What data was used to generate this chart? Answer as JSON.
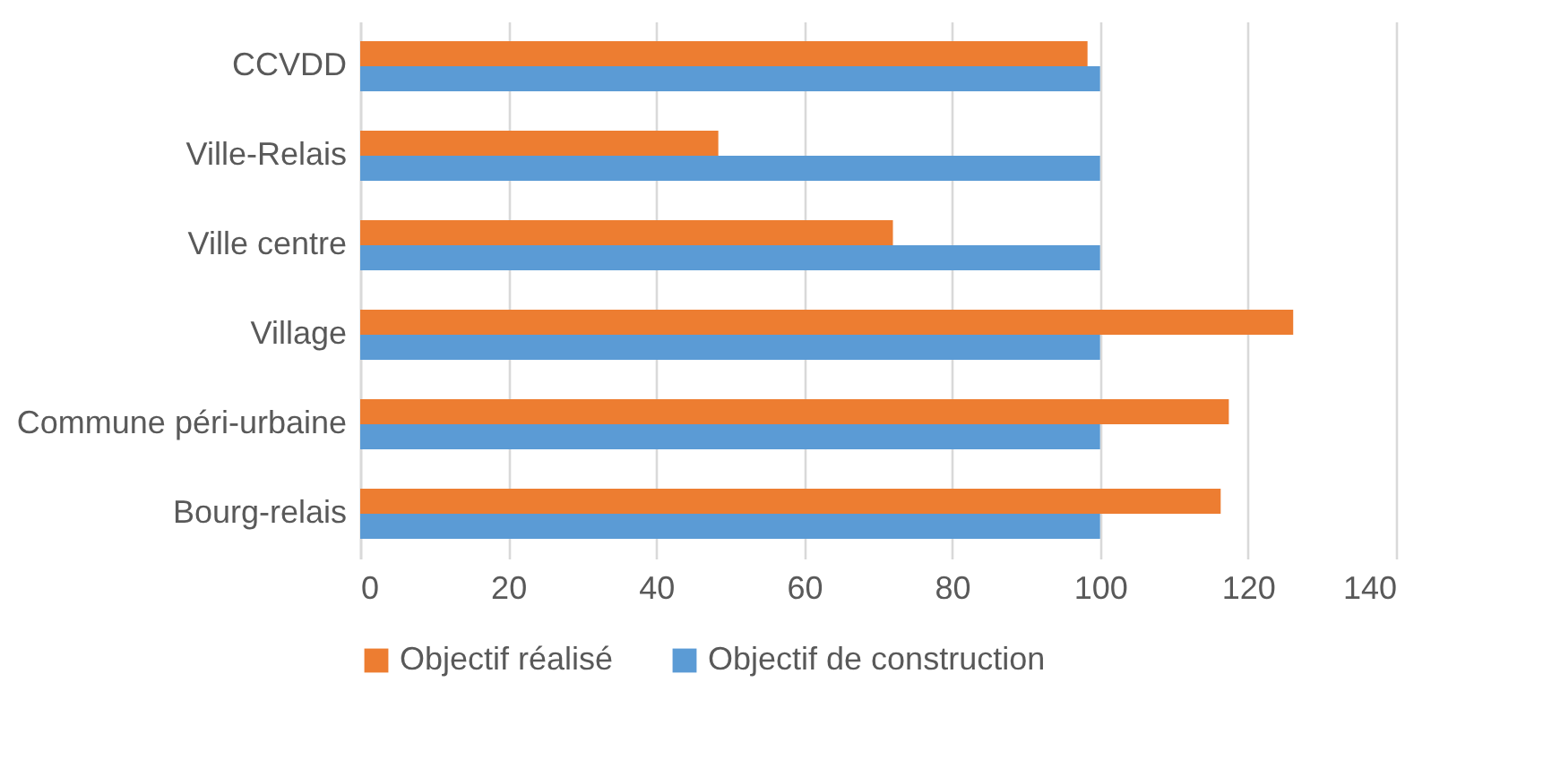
{
  "chart_data": {
    "type": "bar",
    "orientation": "horizontal",
    "categories": [
      "CCVDD",
      "Ville-Relais",
      "Ville centre",
      "Village",
      "Commune péri-urbaine",
      "Bourg-relais"
    ],
    "series": [
      {
        "name": "Objectif réalisé",
        "color": "#ed7d31",
        "values": [
          98.3,
          48.4,
          72.0,
          126.1,
          117.4,
          116.3
        ]
      },
      {
        "name": "Objectif de construction",
        "color": "#5b9bd5",
        "values": [
          100,
          100,
          100,
          100,
          100,
          100
        ]
      }
    ],
    "xlim": [
      0,
      140
    ],
    "xticks": [
      0,
      20,
      40,
      60,
      80,
      100,
      120,
      140
    ],
    "grid": "x",
    "legend": "bottom"
  }
}
